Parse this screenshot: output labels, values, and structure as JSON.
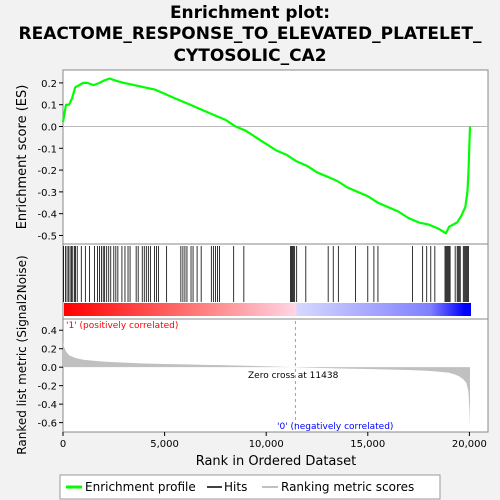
{
  "title_lines": [
    "Enrichment plot:",
    "REACTOME_RESPONSE_TO_ELEVATED_PLATELET_",
    "CYTOSOLIC_CA2"
  ],
  "colors": {
    "es_line": "#00ff00",
    "hit_line": "#000000",
    "metric_fill": "#c0c0c0",
    "positive": "#ff0000",
    "negative": "#0000ff",
    "zero_cross_line": "#a0a0a0",
    "pos_label": "#ff0000",
    "neg_label": "#0000ff"
  },
  "chart_data": {
    "type": "line",
    "top_panel": {
      "ylabel": "Enrichment score (ES)",
      "ylim": [
        -0.53,
        0.25
      ],
      "yticks": [
        "0.2",
        "0.1",
        "0.0",
        "-0.1",
        "-0.2",
        "-0.3",
        "-0.4",
        "-0.5"
      ],
      "ytick_values": [
        0.2,
        0.1,
        0.0,
        -0.1,
        -0.2,
        -0.3,
        -0.4,
        -0.5
      ],
      "series": [
        {
          "name": "Enrichment profile",
          "x": [
            0,
            150,
            300,
            450,
            600,
            800,
            1000,
            1200,
            1500,
            1800,
            2000,
            2300,
            2600,
            3000,
            3500,
            4000,
            4500,
            5000,
            5500,
            6000,
            6500,
            7000,
            7500,
            8000,
            8500,
            9000,
            9500,
            10000,
            10500,
            11000,
            11500,
            12000,
            12500,
            13000,
            13500,
            14000,
            14500,
            15000,
            15500,
            16000,
            16500,
            17000,
            17500,
            18000,
            18500,
            18850,
            19000,
            19200,
            19400,
            19600,
            19800,
            19900,
            19950,
            20000,
            20030
          ],
          "y": [
            0.02,
            0.1,
            0.1,
            0.13,
            0.18,
            0.19,
            0.2,
            0.2,
            0.19,
            0.2,
            0.21,
            0.22,
            0.21,
            0.2,
            0.19,
            0.18,
            0.17,
            0.15,
            0.13,
            0.11,
            0.09,
            0.07,
            0.05,
            0.03,
            0.0,
            -0.02,
            -0.05,
            -0.08,
            -0.11,
            -0.13,
            -0.16,
            -0.18,
            -0.21,
            -0.23,
            -0.25,
            -0.28,
            -0.3,
            -0.32,
            -0.35,
            -0.37,
            -0.39,
            -0.42,
            -0.44,
            -0.45,
            -0.47,
            -0.49,
            -0.46,
            -0.45,
            -0.44,
            -0.41,
            -0.37,
            -0.3,
            -0.22,
            -0.08,
            0.0
          ]
        }
      ]
    },
    "hits": {
      "name": "Hits",
      "positions": [
        30,
        120,
        200,
        280,
        350,
        420,
        480,
        560,
        620,
        700,
        900,
        1100,
        1300,
        1550,
        1700,
        1800,
        1900,
        1980,
        2050,
        2150,
        2250,
        2350,
        2500,
        2600,
        2700,
        2900,
        3050,
        3200,
        3300,
        3600,
        3700,
        3900,
        4000,
        4100,
        4200,
        4300,
        4500,
        4600,
        4700,
        5100,
        5800,
        5900,
        6000,
        6100,
        6300,
        6400,
        6600,
        6800,
        7300,
        7400,
        7500,
        7600,
        7700,
        8400,
        8900,
        11200,
        11250,
        11300,
        11350,
        11400,
        11500,
        11950,
        13050,
        13300,
        13550,
        14400,
        15000,
        15300,
        15500,
        17200,
        17700,
        17900,
        18100,
        18300,
        18800,
        18850,
        18900,
        18950,
        19000,
        19050,
        19300,
        19400,
        19450,
        19500,
        19550,
        19700,
        19750,
        19800,
        19850,
        19900,
        19950
      ]
    },
    "bottom_panel": {
      "ylabel": "Ranked list metric (Signal2Noise)",
      "xlabel": "Rank in Ordered Dataset",
      "ylim": [
        -0.68,
        0.5
      ],
      "yticks": [
        "0.4",
        "0.2",
        "0.0",
        "-0.2",
        "-0.4",
        "-0.6"
      ],
      "ytick_values": [
        0.4,
        0.2,
        0.0,
        -0.2,
        -0.4,
        -0.6
      ],
      "metric_x": [
        0,
        50,
        150,
        300,
        600,
        1000,
        1500,
        2000,
        3000,
        4000,
        5000,
        6000,
        7000,
        8000,
        9000,
        10000,
        11438,
        12000,
        13000,
        14000,
        15000,
        16000,
        17000,
        18000,
        18500,
        19000,
        19300,
        19500,
        19700,
        19850,
        19950,
        20000,
        20030
      ],
      "metric_y": [
        0.27,
        0.22,
        0.17,
        0.13,
        0.1,
        0.08,
        0.07,
        0.06,
        0.05,
        0.04,
        0.035,
        0.03,
        0.025,
        0.02,
        0.015,
        0.01,
        0.0,
        -0.005,
        -0.01,
        -0.015,
        -0.02,
        -0.025,
        -0.03,
        -0.04,
        -0.05,
        -0.06,
        -0.08,
        -0.1,
        -0.13,
        -0.17,
        -0.26,
        -0.45,
        -0.65
      ],
      "zero_cross_label": "Zero cross at 11438",
      "zero_cross": 11438,
      "pos_label": "'1' (positively correlated)",
      "neg_label": "'0' (negatively correlated)"
    },
    "xlim": [
      0,
      20030
    ],
    "xticks": [
      "0",
      "5,000",
      "10,000",
      "15,000",
      "20,000"
    ],
    "xtick_values": [
      0,
      5000,
      10000,
      15000,
      20000
    ]
  },
  "legend": {
    "items": [
      {
        "label": "Enrichment profile",
        "color": "#00ff00"
      },
      {
        "label": "Hits",
        "color": "#000000"
      },
      {
        "label": "Ranking metric scores",
        "color": "#c0c0c0"
      }
    ]
  }
}
